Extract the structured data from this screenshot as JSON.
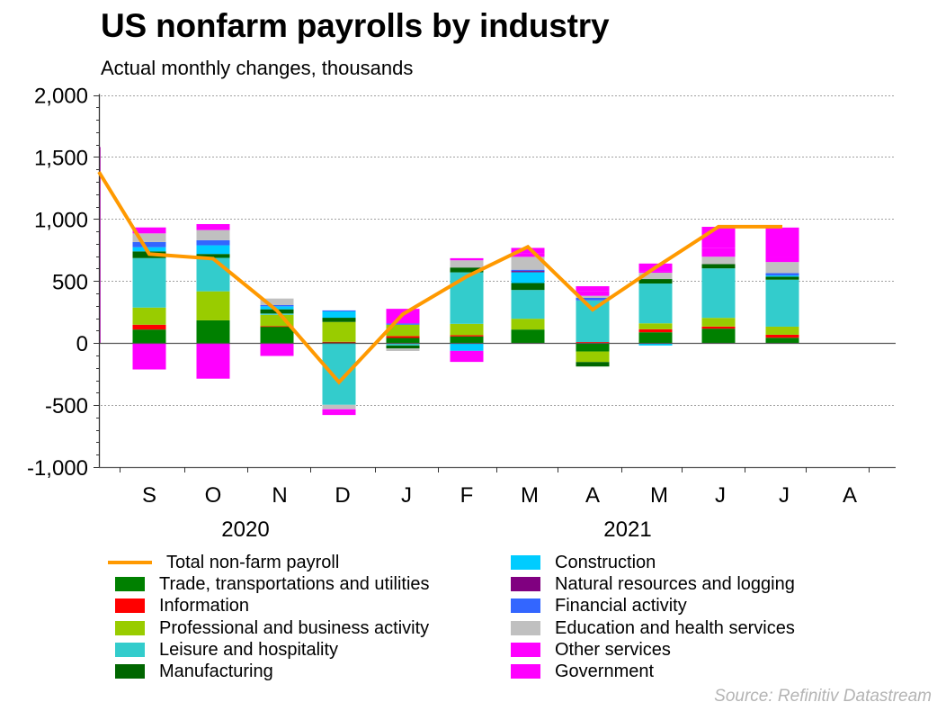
{
  "title": "US nonfarm payrolls by industry",
  "subtitle": "Actual monthly changes, thousands",
  "source": "Source: Refinitiv Datastream",
  "chart_data": {
    "type": "bar",
    "stacked": true,
    "title": "US nonfarm payrolls by industry",
    "subtitle": "Actual monthly changes, thousands",
    "xlabel": "",
    "ylabel": "",
    "ylim": [
      -1000,
      2000
    ],
    "yticks": [
      2000,
      1500,
      1000,
      500,
      0,
      -500,
      -1000
    ],
    "ytick_labels": [
      "2,000",
      "1,500",
      "1,000",
      "500",
      "0",
      "-500",
      "-1,000"
    ],
    "grid": true,
    "legend_position": "bottom",
    "categories": [
      "S",
      "O",
      "N",
      "D",
      "J",
      "F",
      "M",
      "A",
      "M",
      "J",
      "J",
      "A"
    ],
    "year_labels": [
      {
        "label": "2020",
        "center_between": [
          "S",
          "D"
        ]
      },
      {
        "label": "2021",
        "center_between": [
          "M",
          "M"
        ]
      }
    ],
    "series": [
      {
        "name": "Trade, transportations and utilities",
        "color": "#008000",
        "values": [
          109,
          183,
          133,
          5,
          41,
          53,
          109,
          -68,
          87,
          116,
          43,
          null
        ]
      },
      {
        "name": "Information",
        "color": "#ff0000",
        "values": [
          39,
          -2,
          3,
          5,
          15,
          10,
          0,
          8,
          24,
          17,
          24,
          null
        ]
      },
      {
        "name": "Professional and business activity",
        "color": "#99cc00",
        "values": [
          138,
          234,
          92,
          160,
          92,
          92,
          87,
          -85,
          48,
          70,
          65,
          null
        ]
      },
      {
        "name": "Leisure and hospitality",
        "color": "#33cccc",
        "values": [
          399,
          270,
          10,
          -498,
          -20,
          415,
          232,
          336,
          321,
          399,
          379,
          null
        ]
      },
      {
        "name": "Manufacturing",
        "color": "#006600",
        "values": [
          54,
          31,
          34,
          34,
          -24,
          39,
          56,
          -36,
          36,
          34,
          24,
          null
        ]
      },
      {
        "name": "Construction",
        "color": "#00ccff",
        "values": [
          34,
          70,
          24,
          51,
          0,
          -63,
          87,
          0,
          -20,
          0,
          10,
          null
        ]
      },
      {
        "name": "Natural resources and logging",
        "color": "#800080",
        "values": [
          0,
          0,
          0,
          0,
          0,
          0,
          10,
          0,
          0,
          0,
          0,
          null
        ]
      },
      {
        "name": "Financial activity",
        "color": "#3366ff",
        "values": [
          41,
          41,
          10,
          8,
          10,
          0,
          10,
          20,
          0,
          0,
          19,
          null
        ]
      },
      {
        "name": "Education and health services",
        "color": "#c0c0c0",
        "values": [
          70,
          82,
          53,
          -36,
          -20,
          58,
          104,
          17,
          51,
          60,
          89,
          null
        ]
      },
      {
        "name": "Other services",
        "color": "#ff00ff",
        "values": [
          48,
          48,
          0,
          -20,
          0,
          17,
          31,
          36,
          14,
          72,
          41,
          null
        ]
      },
      {
        "name": "Government",
        "color": "#ff00ff",
        "values": [
          -213,
          -285,
          -104,
          -26,
          118,
          -89,
          41,
          41,
          60,
          169,
          237,
          null
        ]
      }
    ],
    "line_series": {
      "name": "Total non-farm payroll",
      "color": "#ff9900",
      "values": [
        1380,
        717,
        680,
        261,
        -316,
        233,
        536,
        775,
        269,
        609,
        938,
        938
      ]
    },
    "line_note": "First line point is at the left axis edge (preceding month, Aug 2020), then one point per bar S..J"
  },
  "legend": {
    "left": [
      {
        "label": "Total non-farm payroll",
        "kind": "line",
        "color": "#ff9900"
      },
      {
        "label": "Trade, transportations and utilities",
        "kind": "box",
        "color": "#008000"
      },
      {
        "label": "Information",
        "kind": "box",
        "color": "#ff0000"
      },
      {
        "label": "Professional and business activity",
        "kind": "box",
        "color": "#99cc00"
      },
      {
        "label": "Leisure and hospitality",
        "kind": "box",
        "color": "#33cccc"
      },
      {
        "label": "Manufacturing",
        "kind": "box",
        "color": "#006600"
      }
    ],
    "right": [
      {
        "label": "Construction",
        "kind": "box",
        "color": "#00ccff"
      },
      {
        "label": "Natural resources and logging",
        "kind": "box",
        "color": "#800080"
      },
      {
        "label": "Financial activity",
        "kind": "box",
        "color": "#3366ff"
      },
      {
        "label": "Education and health services",
        "kind": "box",
        "color": "#c0c0c0"
      },
      {
        "label": "Other services",
        "kind": "box",
        "color": "#ff00ff"
      },
      {
        "label": "Government",
        "kind": "box",
        "color": "#ff00ff"
      }
    ]
  }
}
